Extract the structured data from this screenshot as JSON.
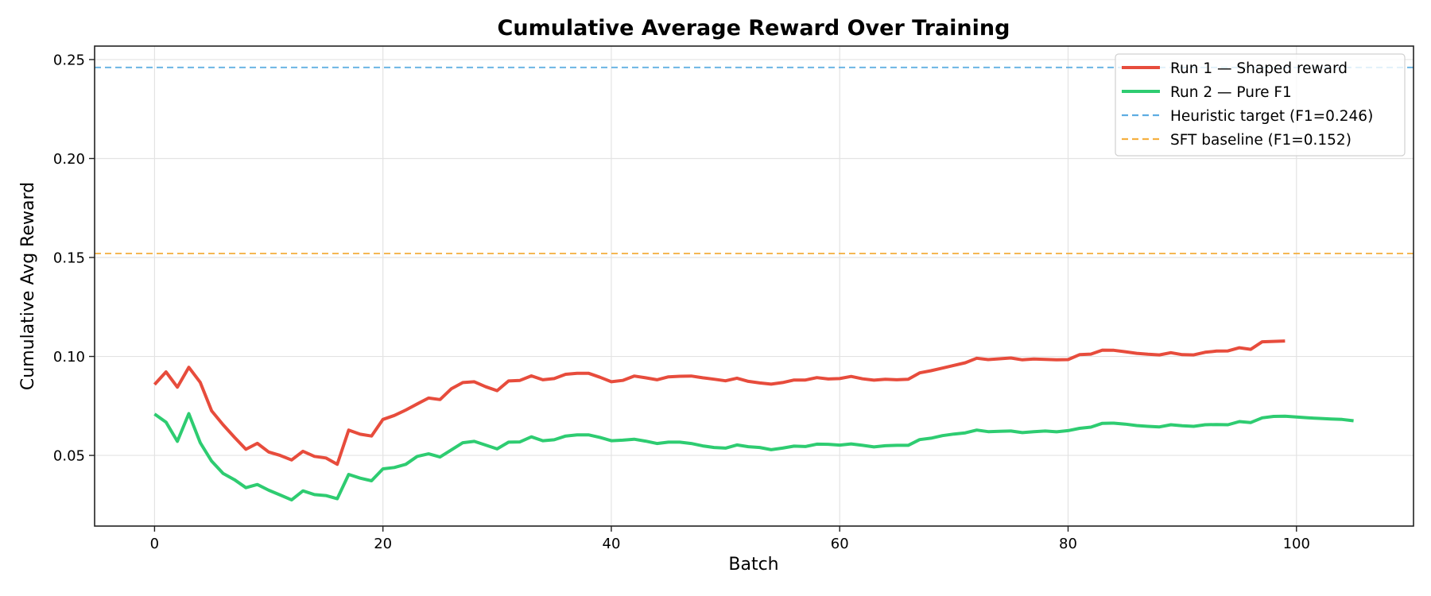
{
  "chart_data": {
    "type": "line",
    "title": "Cumulative Average Reward Over Training",
    "xlabel": "Batch",
    "ylabel": "Cumulative Avg Reward",
    "xlim": [
      -5.25,
      110.25
    ],
    "ylim": [
      0.0143,
      0.2568
    ],
    "xticks": [
      0,
      20,
      40,
      60,
      80,
      100
    ],
    "xtick_labels": [
      "0",
      "20",
      "40",
      "60",
      "80",
      "100"
    ],
    "yticks": [
      0.05,
      0.1,
      0.15,
      0.2,
      0.25
    ],
    "ytick_labels": [
      "0.05",
      "0.10",
      "0.15",
      "0.20",
      "0.25"
    ],
    "grid": true,
    "legend_position": "upper right",
    "series": [
      {
        "name": "Run 1 — Shaped reward",
        "color": "#e74c3c",
        "style": "solid",
        "x_start": 0,
        "values": [
          0.0858,
          0.0922,
          0.0845,
          0.0945,
          0.0869,
          0.0725,
          0.0655,
          0.0591,
          0.0531,
          0.0561,
          0.0517,
          0.05,
          0.0477,
          0.0521,
          0.0495,
          0.0487,
          0.0455,
          0.0628,
          0.0607,
          0.0598,
          0.0682,
          0.0702,
          0.0729,
          0.076,
          0.079,
          0.0782,
          0.0837,
          0.0868,
          0.0872,
          0.0847,
          0.0827,
          0.0876,
          0.0879,
          0.0902,
          0.0882,
          0.0888,
          0.091,
          0.0915,
          0.0915,
          0.0895,
          0.0872,
          0.0879,
          0.0901,
          0.0892,
          0.0882,
          0.0897,
          0.09,
          0.0901,
          0.0892,
          0.0885,
          0.0877,
          0.089,
          0.0874,
          0.0866,
          0.086,
          0.0868,
          0.0881,
          0.0881,
          0.0893,
          0.0886,
          0.0888,
          0.0899,
          0.0887,
          0.088,
          0.0885,
          0.0882,
          0.0885,
          0.0917,
          0.0928,
          0.0941,
          0.0955,
          0.0968,
          0.0991,
          0.0984,
          0.0988,
          0.0992,
          0.0983,
          0.0987,
          0.0985,
          0.0983,
          0.0984,
          0.1009,
          0.1012,
          0.1032,
          0.1031,
          0.1024,
          0.1016,
          0.1011,
          0.1008,
          0.1019,
          0.1009,
          0.1008,
          0.1021,
          0.1027,
          0.1028,
          0.1044,
          0.1036,
          0.1074,
          0.1076,
          0.1078
        ]
      },
      {
        "name": "Run 2 — Pure F1",
        "color": "#2ecc71",
        "style": "solid",
        "x_start": 0,
        "values": [
          0.0709,
          0.0668,
          0.0571,
          0.0711,
          0.0564,
          0.0471,
          0.0409,
          0.0377,
          0.0337,
          0.0353,
          0.0324,
          0.03,
          0.0275,
          0.0321,
          0.0302,
          0.0297,
          0.0281,
          0.0404,
          0.0385,
          0.0372,
          0.0432,
          0.0439,
          0.0455,
          0.0495,
          0.0508,
          0.0492,
          0.0528,
          0.0564,
          0.0571,
          0.0552,
          0.0533,
          0.0567,
          0.0568,
          0.0594,
          0.0574,
          0.0579,
          0.0598,
          0.0604,
          0.0604,
          0.0591,
          0.0574,
          0.0577,
          0.0582,
          0.0572,
          0.056,
          0.0567,
          0.0567,
          0.056,
          0.0548,
          0.054,
          0.0537,
          0.0553,
          0.0544,
          0.054,
          0.0529,
          0.0537,
          0.0547,
          0.0545,
          0.0557,
          0.0556,
          0.0552,
          0.0558,
          0.0551,
          0.0543,
          0.0549,
          0.0551,
          0.0551,
          0.058,
          0.0587,
          0.06,
          0.0608,
          0.0614,
          0.0628,
          0.062,
          0.0622,
          0.0623,
          0.0615,
          0.062,
          0.0623,
          0.0619,
          0.0625,
          0.0637,
          0.0643,
          0.0662,
          0.0663,
          0.0658,
          0.0651,
          0.0647,
          0.0644,
          0.0655,
          0.065,
          0.0647,
          0.0655,
          0.0656,
          0.0655,
          0.0671,
          0.0666,
          0.069,
          0.0697,
          0.0698,
          0.0694,
          0.069,
          0.0687,
          0.0684,
          0.0682,
          0.0675
        ]
      }
    ],
    "hlines": [
      {
        "name": "Heuristic target (F1=0.246)",
        "y": 0.246,
        "color": "#5dade2",
        "style": "dashed"
      },
      {
        "name": "SFT baseline (F1=0.152)",
        "y": 0.152,
        "color": "#f5b041",
        "style": "dashed"
      }
    ]
  },
  "legend": {
    "items": [
      {
        "label": "Run 1 — Shaped reward",
        "color": "#e74c3c",
        "style": "solid"
      },
      {
        "label": "Run 2 — Pure F1",
        "color": "#2ecc71",
        "style": "solid"
      },
      {
        "label": "Heuristic target (F1=0.246)",
        "color": "#5dade2",
        "style": "dashed"
      },
      {
        "label": "SFT baseline (F1=0.152)",
        "color": "#f5b041",
        "style": "dashed"
      }
    ]
  }
}
